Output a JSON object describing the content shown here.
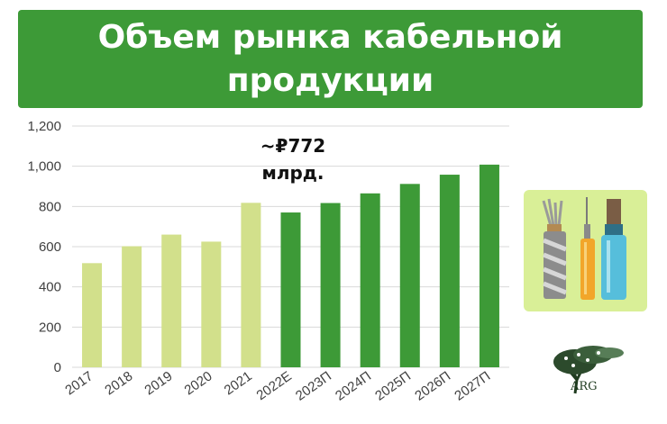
{
  "title": "Объем рынка кабельной продукции",
  "chart_data": {
    "type": "bar",
    "categories": [
      "2017",
      "2018",
      "2019",
      "2020",
      "2021",
      "2022E",
      "2023П",
      "2024П",
      "2025П",
      "2026П",
      "2027П"
    ],
    "values": [
      518,
      602,
      660,
      625,
      818,
      770,
      817,
      865,
      912,
      958,
      1008
    ],
    "ylim": [
      0,
      1200
    ],
    "yticks": [
      "0",
      "200",
      "400",
      "600",
      "800",
      "1,000",
      "1,200"
    ],
    "grid": true,
    "annotation": {
      "line1": "~₽772",
      "line2": "млрд."
    },
    "colors": {
      "historical": "#d2e08b",
      "forecast": "#3d9a37"
    },
    "historical_count": 5
  },
  "logo": {
    "text": "ARG"
  },
  "colors": {
    "banner": "#3d9a37",
    "panel": "#d9ef97"
  }
}
